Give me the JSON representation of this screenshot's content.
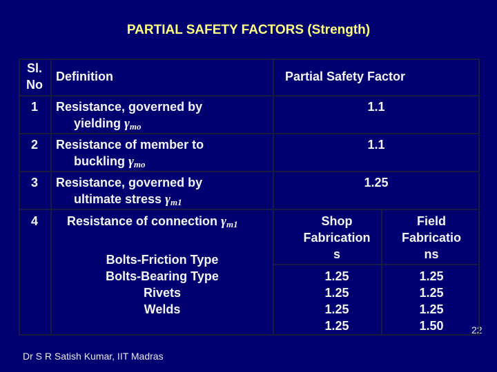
{
  "title": "PARTIAL SAFETY FACTORS  (Strength)",
  "table": {
    "header": {
      "sl_no": [
        "Sl.",
        "No"
      ],
      "definition": "Definition",
      "factor": "Partial Safety Factor"
    },
    "rows": [
      {
        "sl_no": "1",
        "definition": [
          "Resistance, governed by",
          "yielding"
        ],
        "symbol": "γ",
        "subscript": "mo",
        "factor": "1.1"
      },
      {
        "sl_no": "2",
        "definition": [
          "Resistance of member to",
          "buckling"
        ],
        "symbol": "γ",
        "subscript": "mo",
        "factor": "1.1"
      },
      {
        "sl_no": "3",
        "definition": [
          "Resistance, governed by",
          "ultimate stress"
        ],
        "symbol": "γ",
        "subscript": "m1",
        "factor": "1.25"
      }
    ],
    "connection": {
      "sl_no": "4",
      "definition": "Resistance of connection",
      "symbol": "γ",
      "subscript": "m1",
      "types": [
        "Bolts-Friction Type",
        "Bolts-Bearing Type",
        "Rivets",
        "Welds"
      ],
      "columns": [
        {
          "header": [
            "Shop",
            "Fabrication",
            "s"
          ],
          "values": [
            "1.25",
            "1.25",
            "1.25",
            "1.25"
          ]
        },
        {
          "header": [
            "Field",
            "Fabricatio",
            "ns"
          ],
          "values": [
            "1.25",
            "1.25",
            "1.25",
            "1.50"
          ]
        }
      ]
    }
  },
  "footer": {
    "author": "Dr S R Satish Kumar, IIT Madras",
    "page": "22"
  }
}
